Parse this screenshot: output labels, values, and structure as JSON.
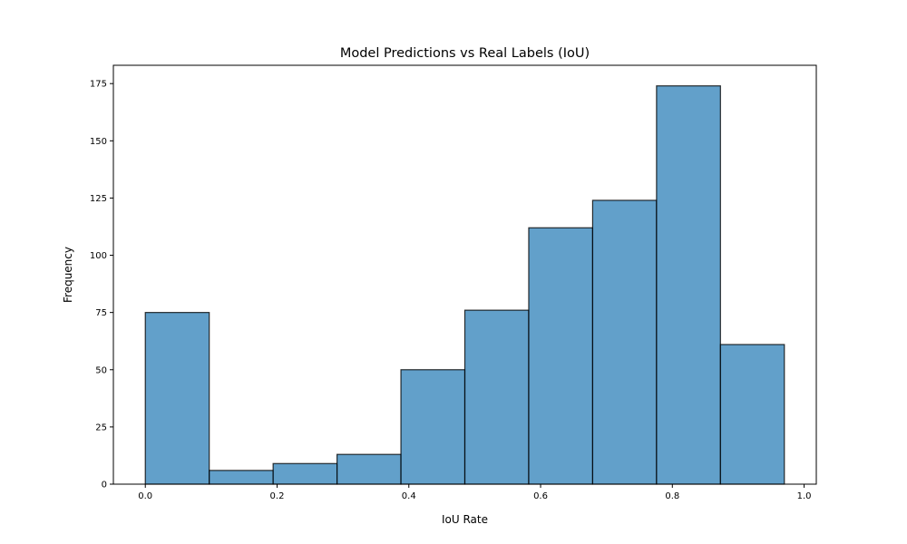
{
  "chart_data": {
    "type": "bar",
    "title": "Model Predictions vs Real Labels (IoU)",
    "xlabel": "IoU Rate",
    "ylabel": "Frequency",
    "bin_edges": [
      0.0,
      0.097,
      0.194,
      0.291,
      0.388,
      0.485,
      0.582,
      0.679,
      0.776,
      0.873,
      0.97
    ],
    "values": [
      75,
      6,
      9,
      13,
      50,
      76,
      112,
      124,
      174,
      61
    ],
    "xlim": [
      -0.0485,
      1.0185
    ],
    "ylim": [
      0,
      183
    ],
    "xticks": [
      0.0,
      0.2,
      0.4,
      0.6,
      0.8,
      1.0
    ],
    "xtick_labels": [
      "0.0",
      "0.2",
      "0.4",
      "0.6",
      "0.8",
      "1.0"
    ],
    "yticks": [
      0,
      25,
      50,
      75,
      100,
      125,
      150,
      175
    ],
    "ytick_labels": [
      "0",
      "25",
      "50",
      "75",
      "100",
      "125",
      "150",
      "175"
    ],
    "grid": false,
    "colors": {
      "bar_fill": "#1f77b4",
      "bar_opacity": 0.7,
      "bar_edge": "#000000"
    }
  }
}
